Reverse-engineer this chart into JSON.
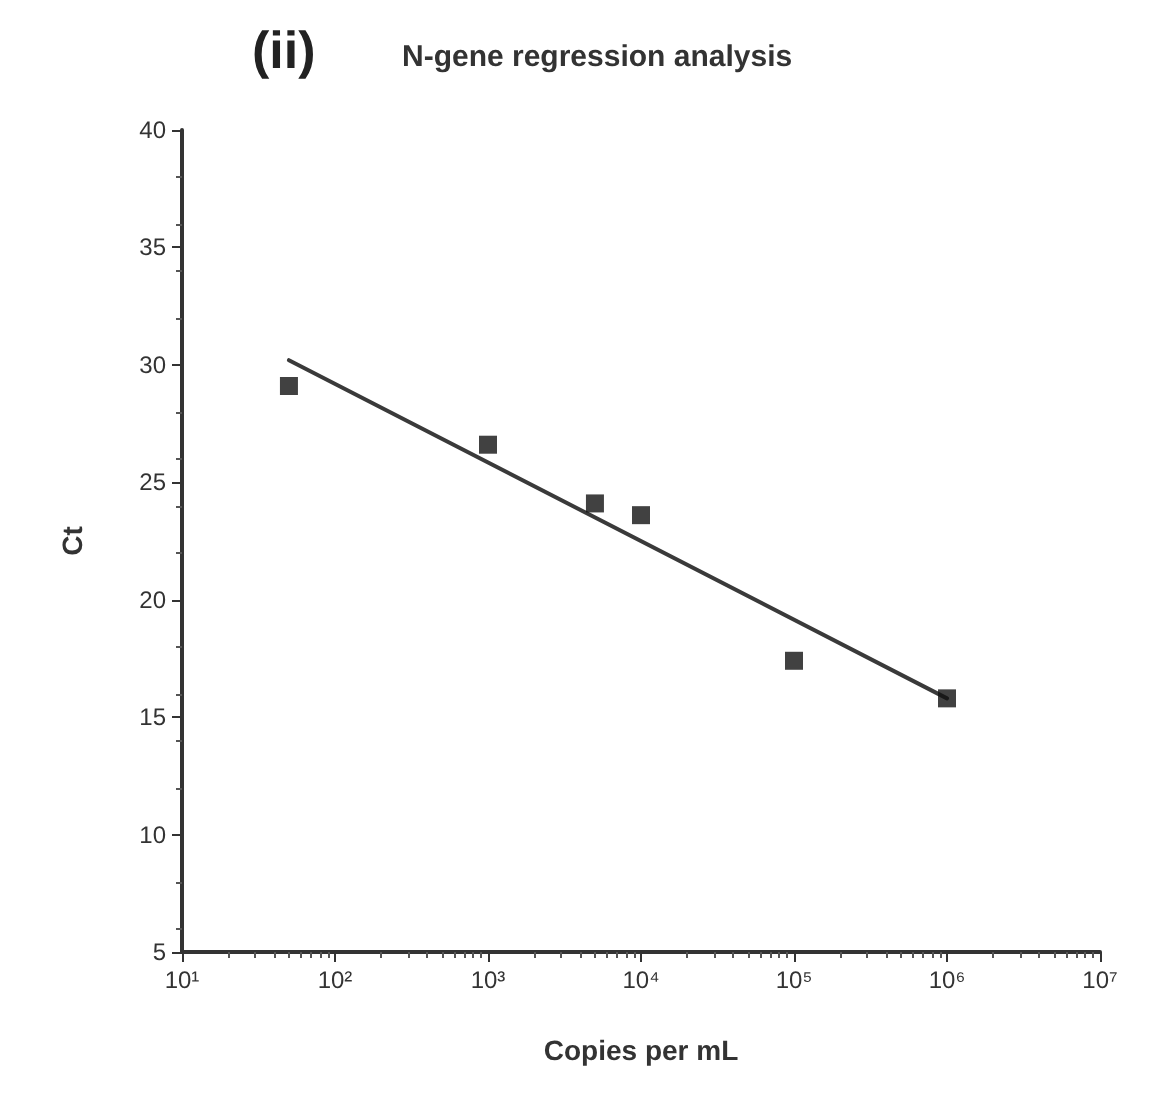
{
  "chart_data": {
    "type": "scatter",
    "title": "N-gene regression analysis",
    "annotations": [
      "(ii)"
    ],
    "xlabel": "Copies per mL",
    "ylabel": "Ct",
    "log": "x",
    "xlim": [
      10,
      10000000
    ],
    "xticks": [
      {
        "value": 10,
        "label": "10¹"
      },
      {
        "value": 100,
        "label": "10²"
      },
      {
        "value": 1000,
        "label": "10³"
      },
      {
        "value": 10000,
        "label": "10⁴"
      },
      {
        "value": 100000,
        "label": "10⁵"
      },
      {
        "value": 1000000,
        "label": "10⁶"
      },
      {
        "value": 10000000,
        "label": "10⁷"
      }
    ],
    "ylim": [
      5,
      40
    ],
    "yticks": [
      5,
      10,
      15,
      20,
      25,
      30,
      35,
      40
    ],
    "series": [
      {
        "marker": "square",
        "color": "#111111",
        "x": [
          50,
          1000,
          5000,
          10000,
          100000,
          1000000
        ],
        "values": [
          29.1,
          26.6,
          24.1,
          23.6,
          17.4,
          15.8
        ]
      },
      {
        "type": "line",
        "marker": "none",
        "line_style": "solid",
        "color": "#3a3a3a",
        "x": [
          50,
          1000000
        ],
        "values": [
          30.2,
          15.8
        ]
      }
    ]
  }
}
